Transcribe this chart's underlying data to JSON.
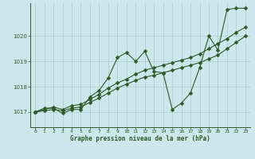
{
  "xlabel": "Graphe pression niveau de la mer (hPa)",
  "xlim": [
    -0.5,
    23.5
  ],
  "ylim": [
    1016.4,
    1021.3
  ],
  "yticks": [
    1017,
    1018,
    1019,
    1020
  ],
  "xticks": [
    0,
    1,
    2,
    3,
    4,
    5,
    6,
    7,
    8,
    9,
    10,
    11,
    12,
    13,
    14,
    15,
    16,
    17,
    18,
    19,
    20,
    21,
    22,
    23
  ],
  "bg_color": "#cce8ec",
  "grid_color": "#aacccc",
  "line_color": "#2d5a27",
  "line1_x": [
    0,
    1,
    2,
    3,
    4,
    5,
    6,
    7,
    8,
    9,
    10,
    11,
    12,
    13,
    14,
    15,
    16,
    17,
    18,
    19,
    20,
    21,
    22,
    23
  ],
  "line1_y": [
    1017.0,
    1017.15,
    1017.15,
    1016.95,
    1017.1,
    1017.1,
    1017.6,
    1017.85,
    1018.35,
    1019.15,
    1019.35,
    1019.0,
    1019.4,
    1018.6,
    1018.55,
    1017.1,
    1017.35,
    1017.75,
    1018.75,
    1020.0,
    1019.45,
    1021.05,
    1021.1,
    1021.1
  ],
  "line2_x": [
    0,
    1,
    2,
    3,
    4,
    5,
    6,
    7,
    8,
    9,
    10,
    11,
    12,
    13,
    14,
    15,
    16,
    17,
    18,
    19,
    20,
    21,
    22,
    23
  ],
  "line2_y": [
    1017.0,
    1017.1,
    1017.2,
    1017.1,
    1017.25,
    1017.3,
    1017.5,
    1017.7,
    1017.95,
    1018.15,
    1018.3,
    1018.5,
    1018.65,
    1018.75,
    1018.85,
    1018.95,
    1019.05,
    1019.15,
    1019.3,
    1019.5,
    1019.7,
    1019.9,
    1020.15,
    1020.35
  ],
  "line3_x": [
    0,
    1,
    2,
    3,
    4,
    5,
    6,
    7,
    8,
    9,
    10,
    11,
    12,
    13,
    14,
    15,
    16,
    17,
    18,
    19,
    20,
    21,
    22,
    23
  ],
  "line3_y": [
    1017.0,
    1017.05,
    1017.1,
    1017.05,
    1017.15,
    1017.2,
    1017.38,
    1017.55,
    1017.75,
    1017.95,
    1018.1,
    1018.25,
    1018.38,
    1018.45,
    1018.55,
    1018.65,
    1018.75,
    1018.85,
    1018.95,
    1019.1,
    1019.25,
    1019.5,
    1019.75,
    1020.0
  ]
}
